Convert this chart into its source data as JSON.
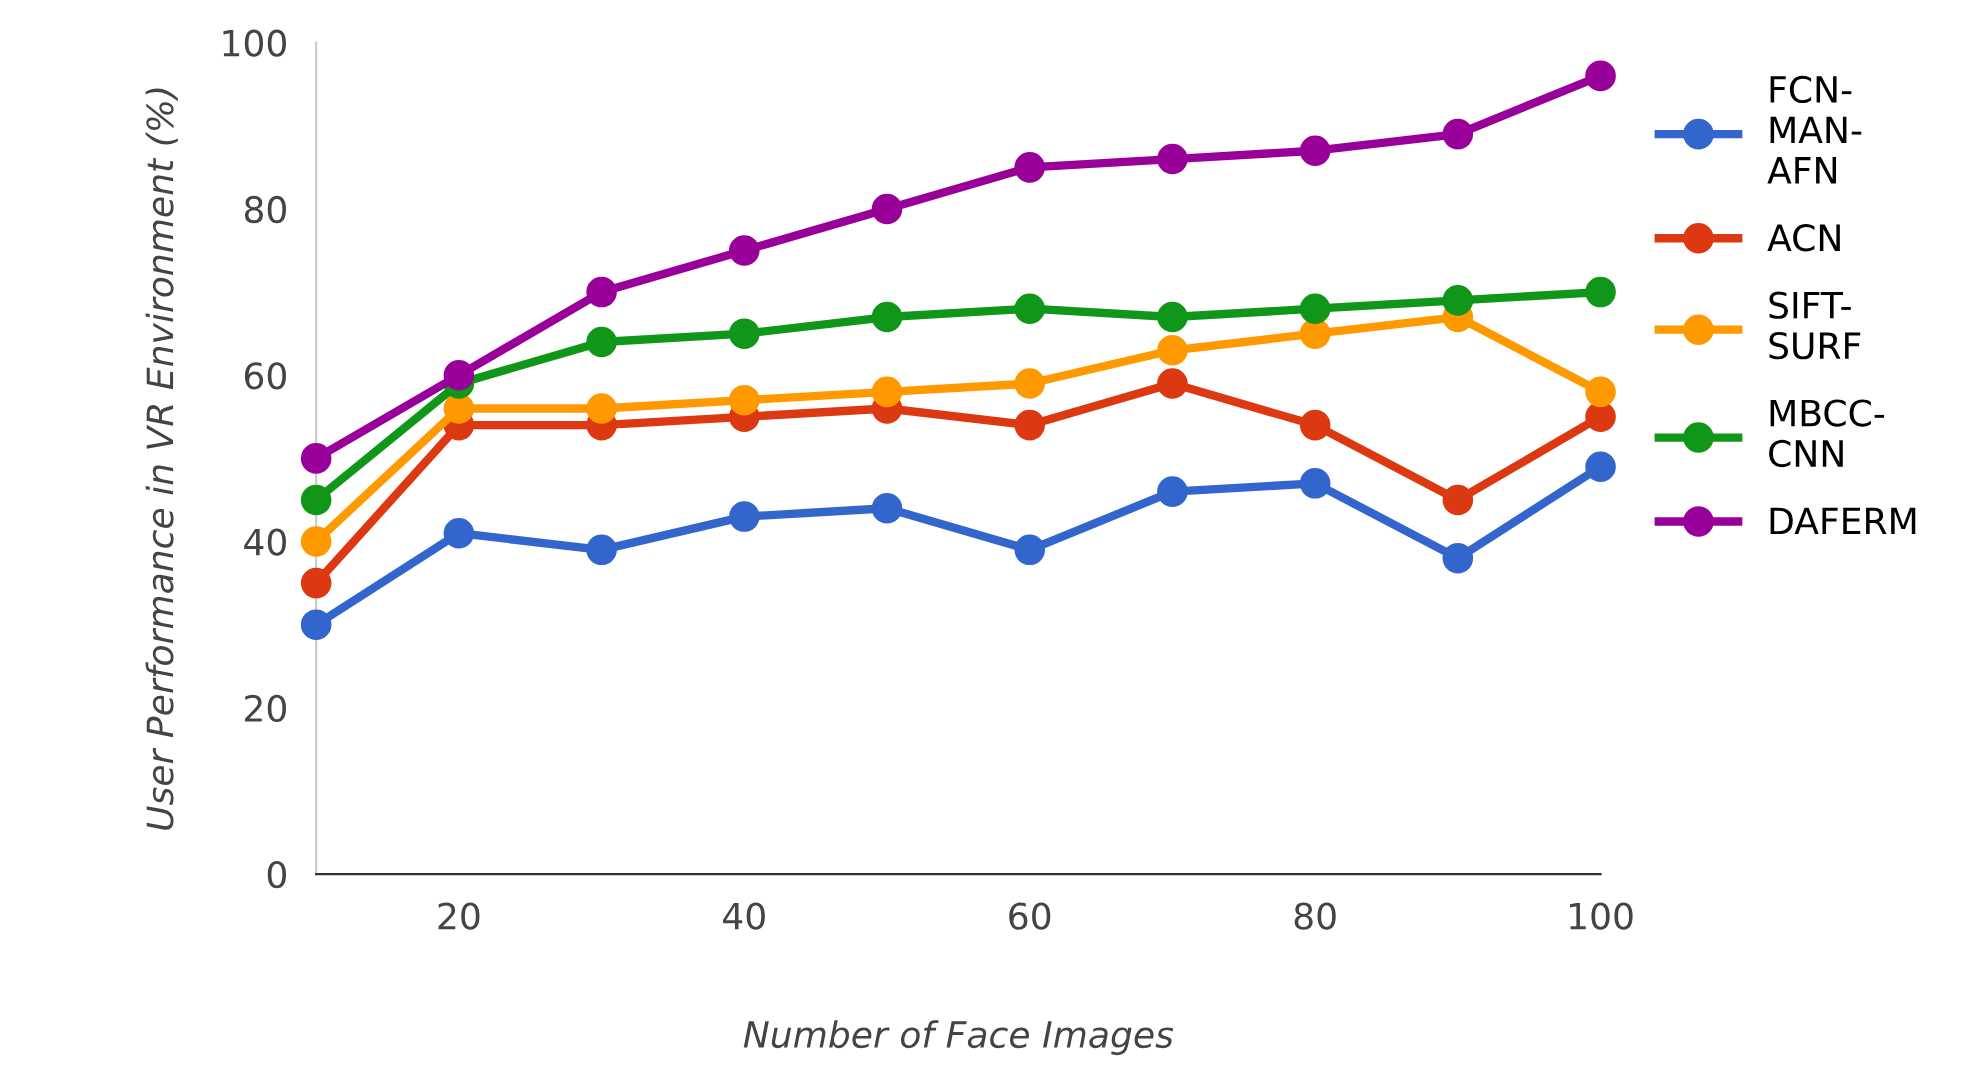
{
  "chart_data": {
    "type": "line",
    "xlabel": "Number of Face Images",
    "ylabel": "User Performance in VR Environment (%)",
    "x": [
      10,
      20,
      30,
      40,
      50,
      60,
      70,
      80,
      90,
      100
    ],
    "xlim": [
      10,
      100
    ],
    "xticks": [
      20,
      40,
      60,
      80,
      100
    ],
    "ylim": [
      0,
      100
    ],
    "yticks": [
      0,
      20,
      40,
      60,
      80,
      100
    ],
    "grid": false,
    "legend": "right",
    "marker": "circle",
    "line_style": "solid",
    "series": [
      {
        "name": "FCN-MAN-AFN",
        "color": "#3366cc",
        "values": [
          30,
          41,
          39,
          43,
          44,
          39,
          46,
          47,
          38,
          49
        ]
      },
      {
        "name": "ACN",
        "color": "#dc3912",
        "values": [
          35,
          54,
          54,
          55,
          56,
          54,
          59,
          54,
          45,
          55
        ]
      },
      {
        "name": "SIFT-SURF",
        "color": "#ff9900",
        "values": [
          40,
          56,
          56,
          57,
          58,
          59,
          63,
          65,
          67,
          58
        ]
      },
      {
        "name": "MBCC-CNN",
        "color": "#109618",
        "values": [
          45,
          59,
          64,
          65,
          67,
          68,
          67,
          68,
          69,
          70
        ]
      },
      {
        "name": "DAFERM",
        "color": "#990099",
        "values": [
          50,
          60,
          70,
          75,
          80,
          85,
          86,
          87,
          89,
          96
        ]
      }
    ]
  }
}
